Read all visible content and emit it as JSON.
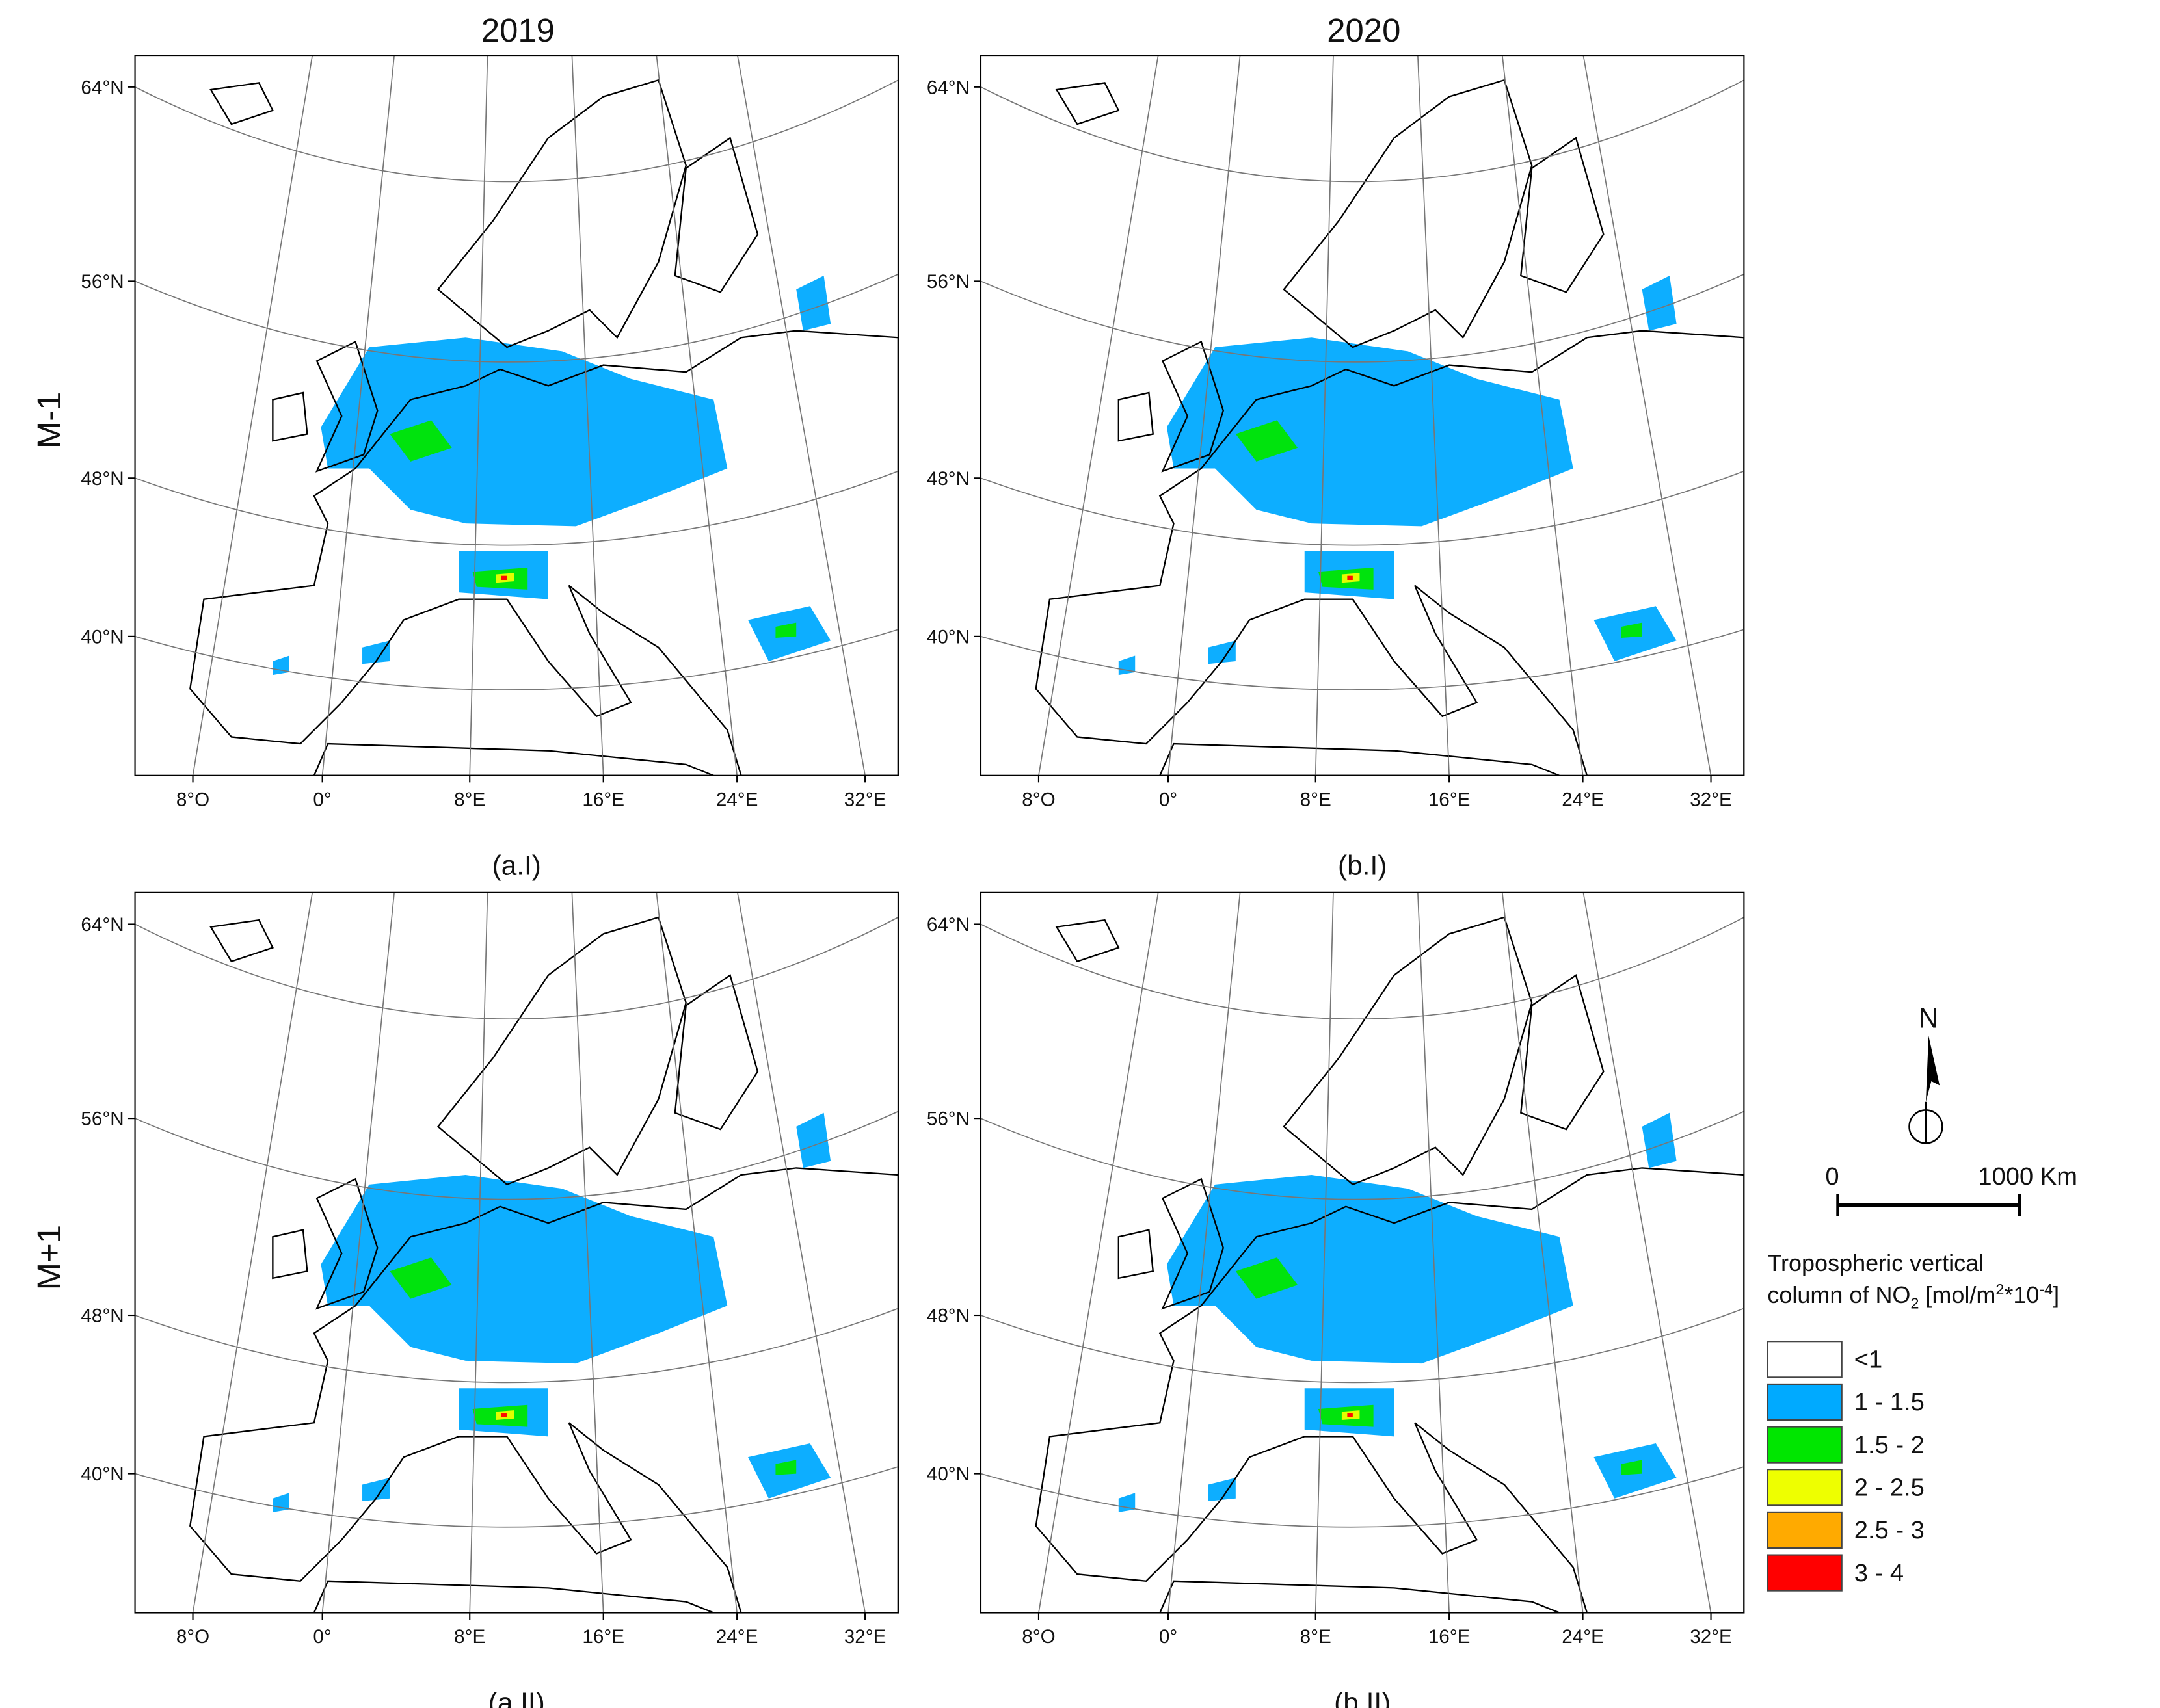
{
  "column_titles": [
    "2019",
    "2020"
  ],
  "row_titles": [
    "M-1",
    "M+1"
  ],
  "panels": [
    {
      "label": "(a.I)"
    },
    {
      "label": "(b.I)"
    },
    {
      "label": "(a.II)"
    },
    {
      "label": "(b.II)"
    }
  ],
  "lat_labels": [
    "64°N",
    "56°N",
    "48°N",
    "40°N"
  ],
  "lon_labels": [
    "8°O",
    "0°",
    "8°E",
    "16°E",
    "24°E",
    "32°E"
  ],
  "north": "N",
  "scale_bar": {
    "start": "0",
    "end": "1000 Km"
  },
  "legend": {
    "title_line1": "Tropospheric vertical",
    "title_line2": {
      "text": "column of NO",
      "sub": "2",
      "unit_open": " [mol/m",
      "sup1": "2",
      "mult": "*10",
      "sup2": "-4",
      "close": "]"
    },
    "items": [
      {
        "label": "<1",
        "color": "#ffffff"
      },
      {
        "label": "1 - 1.5",
        "color": "#00aaff"
      },
      {
        "label": "1.5 - 2",
        "color": "#00e600"
      },
      {
        "label": "2 - 2.5",
        "color": "#eeff00"
      },
      {
        "label": "2.5 - 3",
        "color": "#ffaa00"
      },
      {
        "label": "3 - 4",
        "color": "#ff0000"
      }
    ]
  }
}
